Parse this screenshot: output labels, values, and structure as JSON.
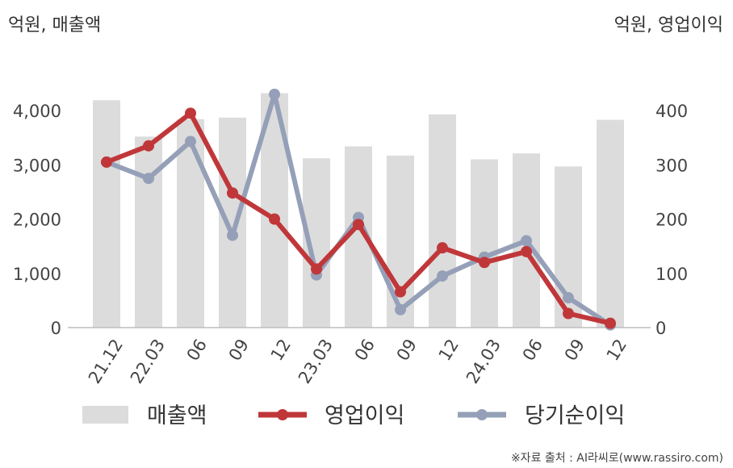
{
  "chart_data": {
    "type": "bar+line",
    "left_unit": "억원, 매출액",
    "right_unit": "억원, 영업이익",
    "categories": [
      "21.12",
      "22.03",
      "06",
      "09",
      "12",
      "23.03",
      "06",
      "09",
      "12",
      "24.03",
      "06",
      "09",
      "12"
    ],
    "left_axis": {
      "ylim": [
        0,
        4000
      ],
      "ticks": [
        "0",
        "1,000",
        "2,000",
        "3,000",
        "4,000"
      ],
      "tick_values": [
        0,
        1000,
        2000,
        3000,
        4000
      ]
    },
    "right_axis": {
      "ylim": [
        0,
        400
      ],
      "ticks": [
        "0",
        "100",
        "200",
        "300",
        "400"
      ],
      "tick_values": [
        0,
        100,
        200,
        300,
        400
      ]
    },
    "series": [
      {
        "name": "매출액",
        "type": "bar",
        "axis": "left",
        "color": "#dcdcdc",
        "values": [
          4190,
          3520,
          3840,
          3870,
          4320,
          3120,
          3340,
          3170,
          3930,
          3100,
          3210,
          2970,
          3830
        ]
      },
      {
        "name": "영업이익",
        "type": "line",
        "axis": "right",
        "color": "#c0373a",
        "values": [
          305,
          335,
          395,
          248,
          200,
          108,
          190,
          66,
          147,
          120,
          140,
          26,
          8
        ]
      },
      {
        "name": "당기순이익",
        "type": "line",
        "axis": "right",
        "color": "#95a0b8",
        "values": [
          305,
          275,
          343,
          170,
          430,
          97,
          203,
          33,
          95,
          130,
          160,
          55,
          5
        ]
      }
    ],
    "grid": false,
    "legend": "bottom"
  },
  "source": "※자료 출처 : AI라씨로(www.rassiro.com)"
}
